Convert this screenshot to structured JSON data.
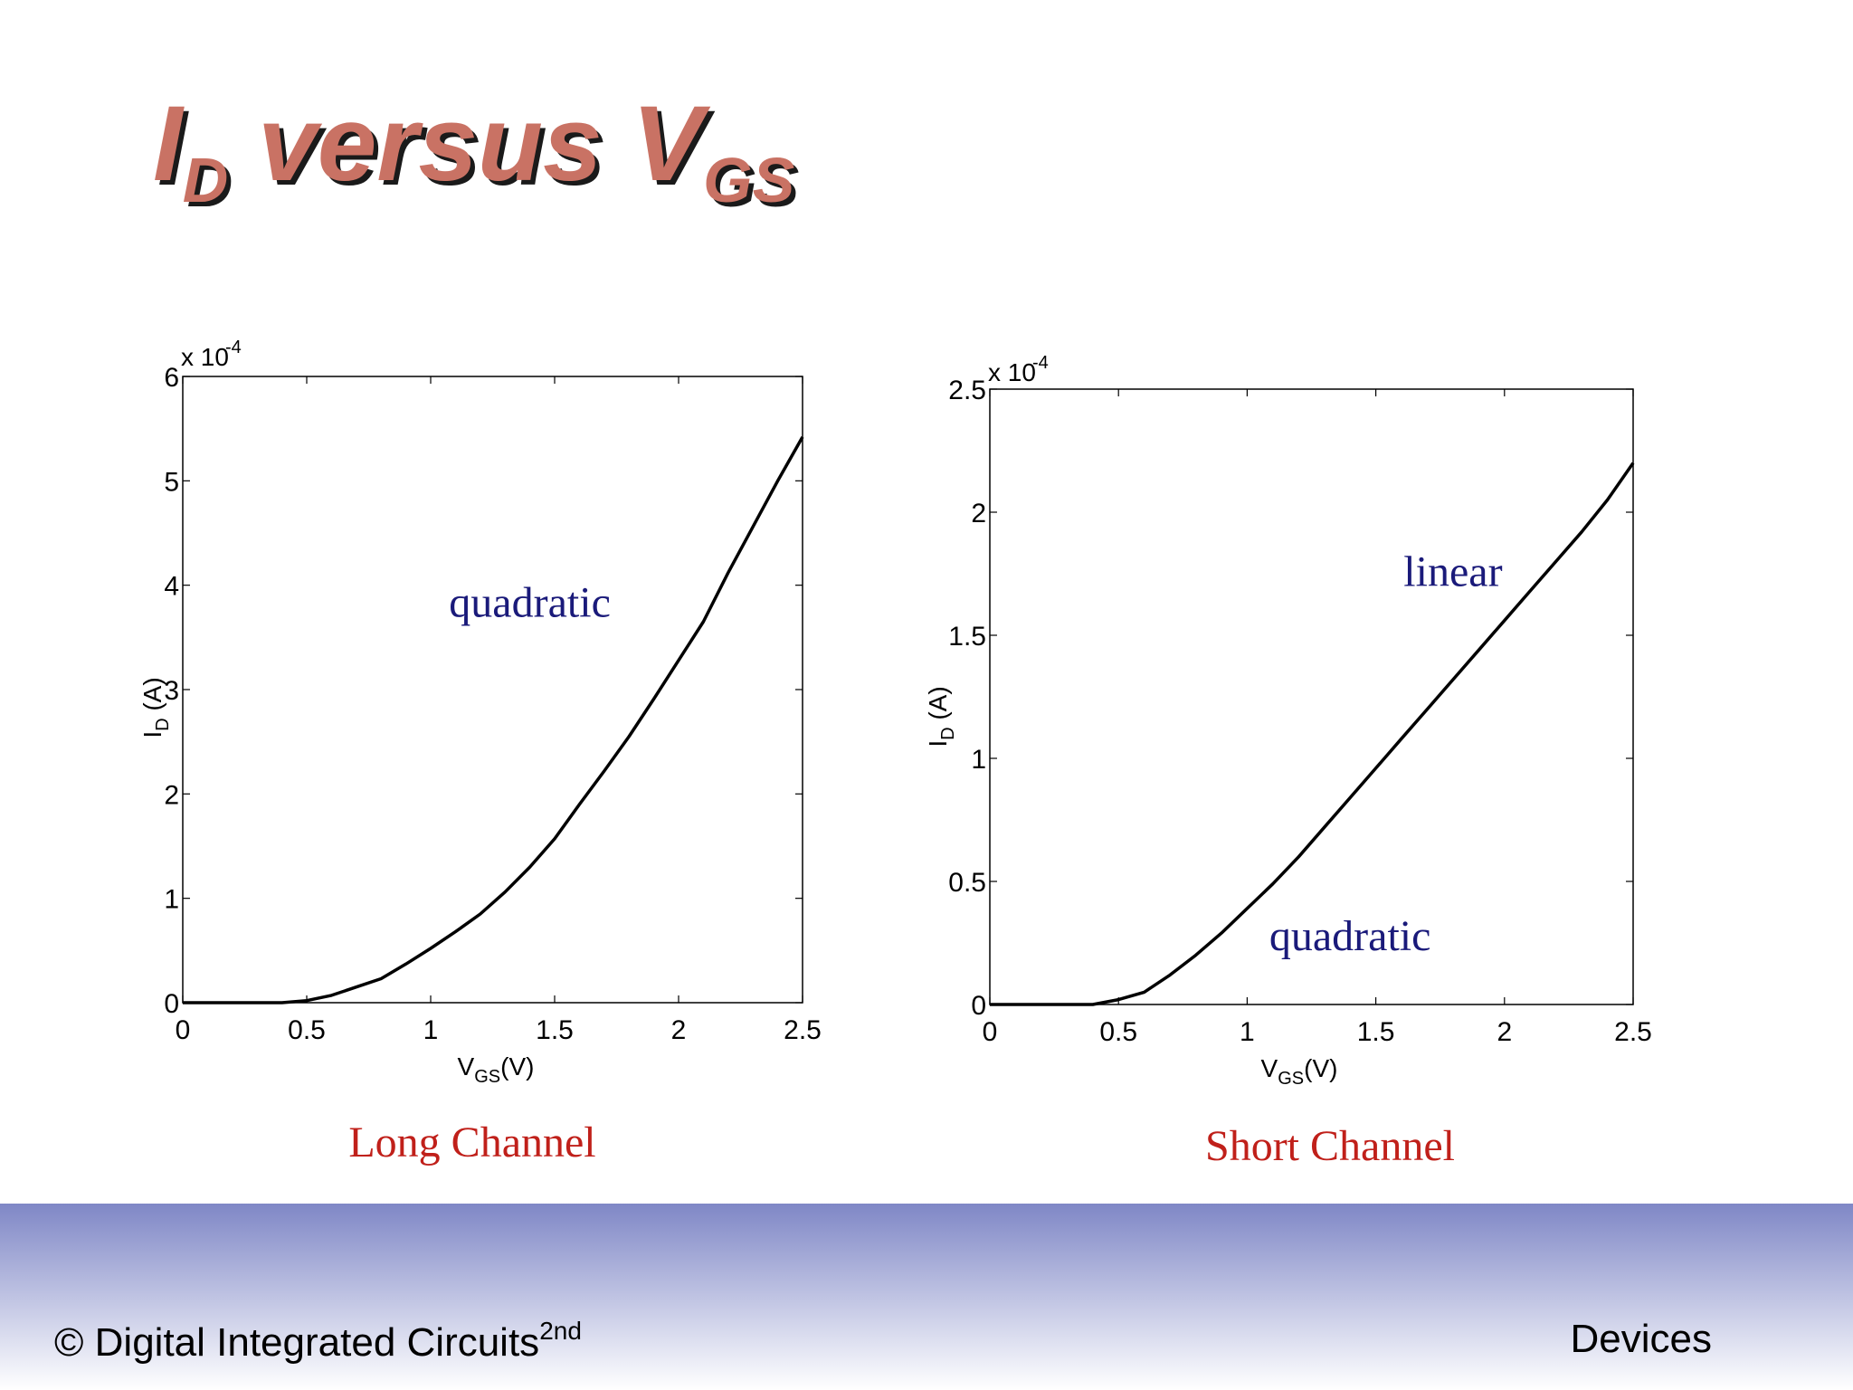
{
  "slide": {
    "title": {
      "main": "I",
      "main_sub": "D",
      "mid": " versus V",
      "end_sub": "GS"
    },
    "colors": {
      "title": "#c97264",
      "title_shadow": "#1a1a1a",
      "annotation": "#1a1a7a",
      "caption": "#c0201a",
      "footer_band_top": "#7f87c6",
      "footer_band_bottom": "#ffffff"
    }
  },
  "chart_data": [
    {
      "type": "line",
      "caption": "Long Channel",
      "xlabel": {
        "main": "V",
        "sub": "GS",
        "rest": "(V)"
      },
      "ylabel": {
        "main": "I",
        "sub": "D",
        "rest": " (A)"
      },
      "y_multiplier": {
        "base": "x 10",
        "exp": "-4"
      },
      "xlim": [
        0,
        2.5
      ],
      "ylim": [
        0,
        6
      ],
      "xticks": [
        "0",
        "0.5",
        "1",
        "1.5",
        "2",
        "2.5"
      ],
      "yticks": [
        "0",
        "1",
        "2",
        "3",
        "4",
        "5",
        "6"
      ],
      "xtick_values": [
        0,
        0.5,
        1,
        1.5,
        2,
        2.5
      ],
      "ytick_values": [
        0,
        1,
        2,
        3,
        4,
        5,
        6
      ],
      "series": [
        {
          "x": [
            0,
            0.4,
            0.5,
            0.6,
            0.7,
            0.8,
            0.9,
            1.0,
            1.1,
            1.2,
            1.3,
            1.4,
            1.5,
            1.6,
            1.7,
            1.8,
            1.9,
            2.0,
            2.1,
            2.2,
            2.3,
            2.4,
            2.5
          ],
          "y": [
            0,
            0,
            0.02,
            0.07,
            0.15,
            0.23,
            0.37,
            0.52,
            0.68,
            0.85,
            1.06,
            1.3,
            1.57,
            1.9,
            2.22,
            2.55,
            2.91,
            3.28,
            3.65,
            4.12,
            4.56,
            5.0,
            5.42
          ]
        }
      ],
      "annotations": [
        {
          "text": "quadratic",
          "x": 1.4,
          "y": 3.7
        }
      ],
      "grid": false
    },
    {
      "type": "line",
      "caption": "Short Channel",
      "xlabel": {
        "main": "V",
        "sub": "GS",
        "rest": "(V)"
      },
      "ylabel": {
        "main": "I",
        "sub": "D",
        "rest": " (A)"
      },
      "y_multiplier": {
        "base": "x 10",
        "exp": "-4"
      },
      "xlim": [
        0,
        2.5
      ],
      "ylim": [
        0,
        2.5
      ],
      "xticks": [
        "0",
        "0.5",
        "1",
        "1.5",
        "2",
        "2.5"
      ],
      "yticks": [
        "0",
        "0.5",
        "1",
        "1.5",
        "2",
        "2.5"
      ],
      "xtick_values": [
        0,
        0.5,
        1,
        1.5,
        2,
        2.5
      ],
      "ytick_values": [
        0,
        0.5,
        1,
        1.5,
        2,
        2.5
      ],
      "series": [
        {
          "x": [
            0,
            0.4,
            0.5,
            0.6,
            0.7,
            0.8,
            0.9,
            1.0,
            1.1,
            1.2,
            1.3,
            1.4,
            1.5,
            1.6,
            1.7,
            1.8,
            1.9,
            2.0,
            2.1,
            2.2,
            2.3,
            2.4,
            2.5
          ],
          "y": [
            0,
            0,
            0.02,
            0.05,
            0.12,
            0.2,
            0.29,
            0.39,
            0.49,
            0.6,
            0.72,
            0.84,
            0.96,
            1.08,
            1.2,
            1.32,
            1.44,
            1.56,
            1.68,
            1.8,
            1.92,
            2.05,
            2.2
          ]
        }
      ],
      "annotations": [
        {
          "text": "linear",
          "x": 1.8,
          "y": 1.7
        },
        {
          "text": "quadratic",
          "x": 1.4,
          "y": 0.22
        }
      ],
      "grid": false
    }
  ],
  "footer": {
    "left_main": "© Digital Integrated Circuits",
    "left_sup": "2nd",
    "right": "Devices"
  }
}
